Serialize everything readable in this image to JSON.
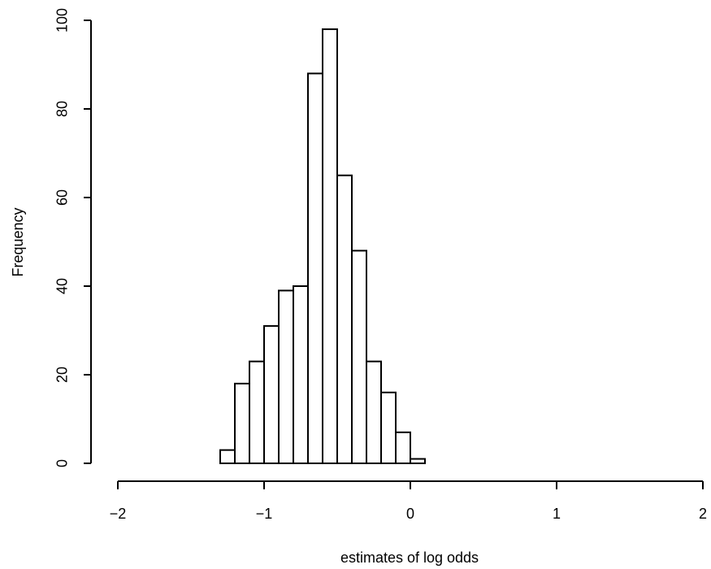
{
  "chart_data": {
    "type": "bar",
    "subtype": "histogram",
    "title": "",
    "xlabel": "estimates of log odds",
    "ylabel": "Frequency",
    "xlim": [
      -2,
      2
    ],
    "ylim": [
      0,
      100
    ],
    "x_ticks": [
      "-2",
      "-1",
      "0",
      "1",
      "2"
    ],
    "y_ticks": [
      "0",
      "20",
      "40",
      "60",
      "80",
      "100"
    ],
    "bin_width": 0.1,
    "bins": [
      {
        "start": -1.3,
        "end": -1.2,
        "count": 3
      },
      {
        "start": -1.2,
        "end": -1.1,
        "count": 18
      },
      {
        "start": -1.1,
        "end": -1.0,
        "count": 23
      },
      {
        "start": -1.0,
        "end": -0.9,
        "count": 31
      },
      {
        "start": -0.9,
        "end": -0.8,
        "count": 39
      },
      {
        "start": -0.8,
        "end": -0.7,
        "count": 40
      },
      {
        "start": -0.7,
        "end": -0.6,
        "count": 88
      },
      {
        "start": -0.6,
        "end": -0.5,
        "count": 98
      },
      {
        "start": -0.5,
        "end": -0.4,
        "count": 65
      },
      {
        "start": -0.4,
        "end": -0.3,
        "count": 48
      },
      {
        "start": -0.3,
        "end": -0.2,
        "count": 23
      },
      {
        "start": -0.2,
        "end": -0.1,
        "count": 16
      },
      {
        "start": -0.1,
        "end": 0.0,
        "count": 7
      },
      {
        "start": 0.0,
        "end": 0.1,
        "count": 1
      }
    ],
    "grid": false,
    "legend": "none"
  }
}
